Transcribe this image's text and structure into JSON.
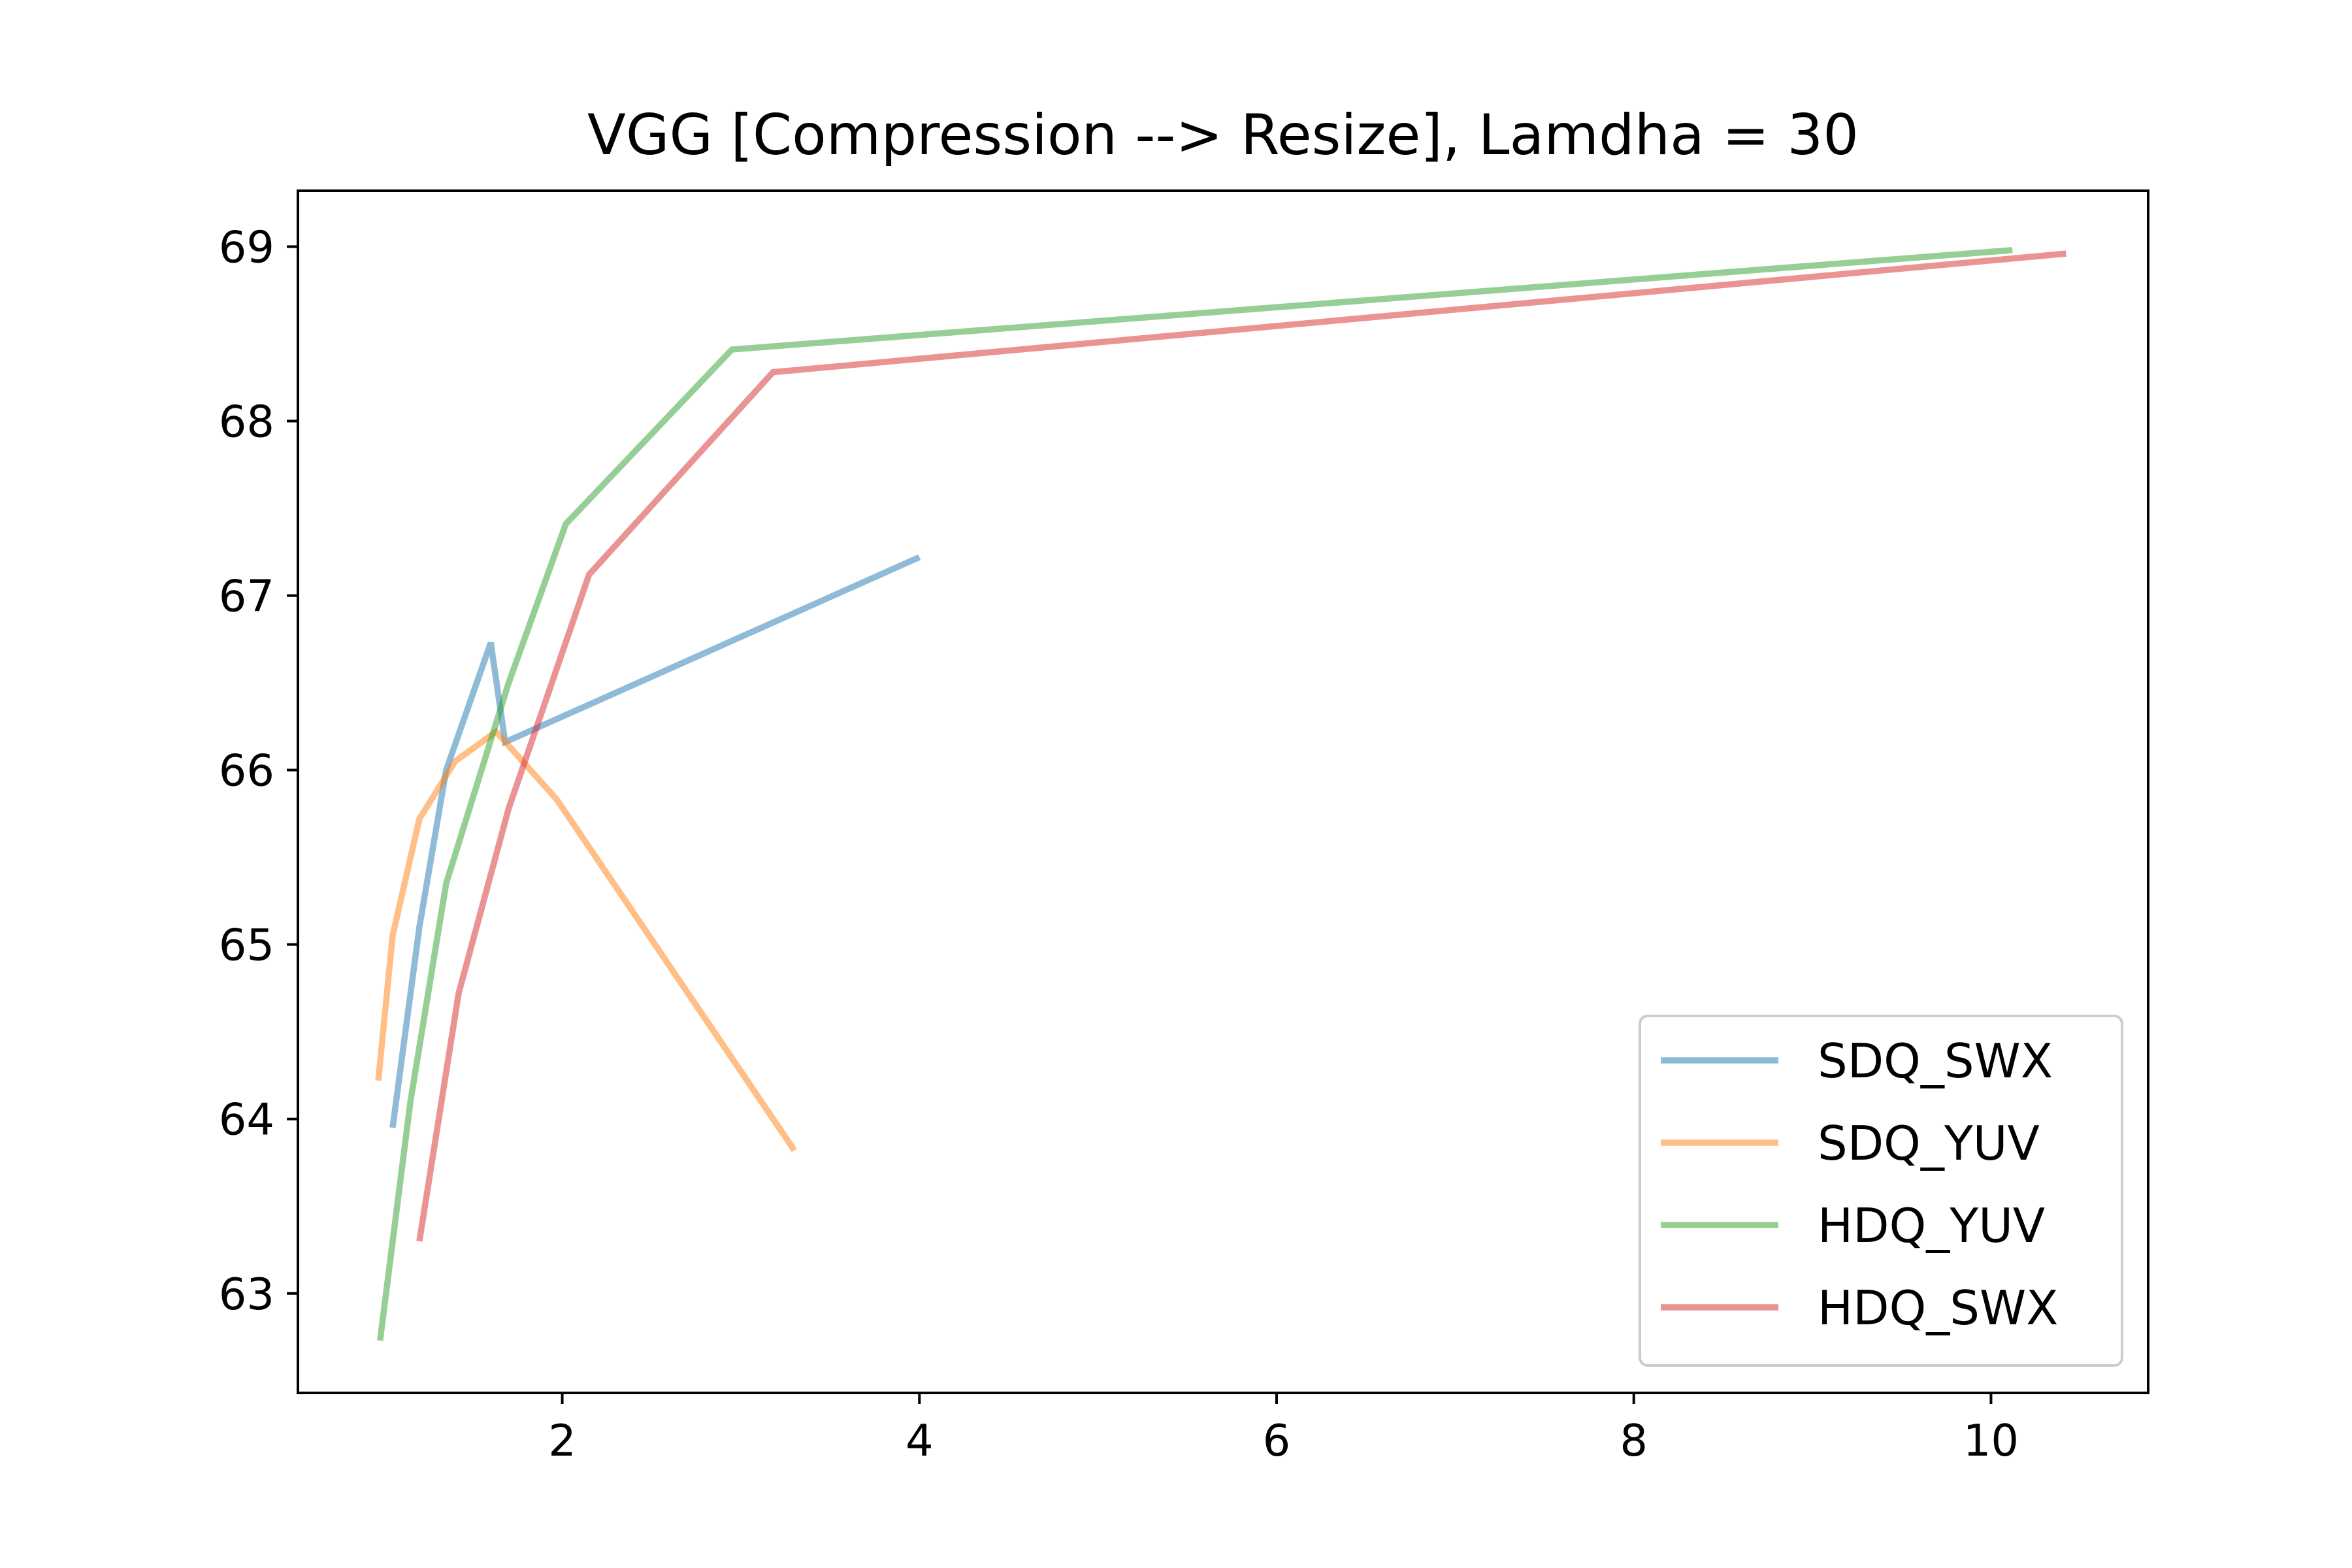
{
  "chart_data": {
    "type": "line",
    "title": "VGG [Compression --> Resize], Lamdha = 30",
    "xlabel": "",
    "ylabel": "",
    "xlim": [
      0.52,
      10.88
    ],
    "ylim": [
      62.43,
      69.32
    ],
    "xticks": [
      2,
      4,
      6,
      8,
      10
    ],
    "yticks": [
      63,
      64,
      65,
      66,
      67,
      68,
      69
    ],
    "grid": false,
    "legend_position": "bottom-right",
    "series": [
      {
        "name": "SDQ_SWX",
        "color": "#1f77b4",
        "x": [
          1.05,
          1.2,
          1.35,
          1.6,
          1.68,
          4.0
        ],
        "y": [
          63.95,
          65.1,
          66.0,
          66.73,
          66.16,
          67.22
        ]
      },
      {
        "name": "SDQ_YUV",
        "color": "#ff7f0e",
        "x": [
          0.97,
          1.05,
          1.2,
          1.4,
          1.63,
          1.97,
          3.3
        ],
        "y": [
          64.22,
          65.05,
          65.72,
          66.05,
          66.22,
          65.83,
          63.82
        ]
      },
      {
        "name": "HDQ_YUV",
        "color": "#2ca02c",
        "x": [
          0.98,
          1.15,
          1.35,
          1.7,
          2.02,
          2.95,
          10.12
        ],
        "y": [
          62.73,
          64.1,
          65.35,
          66.5,
          67.41,
          68.41,
          68.98
        ]
      },
      {
        "name": "HDQ_SWX",
        "color": "#d62728",
        "x": [
          1.2,
          1.42,
          1.7,
          2.15,
          3.18,
          10.42
        ],
        "y": [
          63.3,
          64.72,
          65.78,
          67.12,
          68.28,
          68.96
        ]
      }
    ]
  }
}
